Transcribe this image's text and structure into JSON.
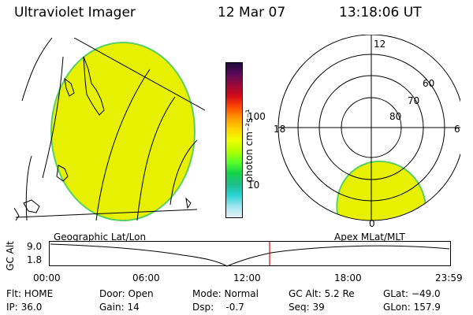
{
  "header": {
    "title": "Ultraviolet Imager",
    "date": "12 Mar 07",
    "time": "13:18:06 UT"
  },
  "geo_panel": {
    "label": "Geographic Lat/Lon"
  },
  "polar_panel": {
    "label": "Apex MLat/MLT",
    "clock_labels": {
      "top": "12",
      "left": "18",
      "right": "6",
      "bottom": "0"
    },
    "ring_labels": [
      "60",
      "70",
      "80"
    ]
  },
  "colorbar": {
    "unit": "photon cm⁻²s⁻¹",
    "ticks": [
      "100",
      "10"
    ],
    "colors": [
      "#1e0a3c",
      "#5a0a5a",
      "#9a0a3a",
      "#d20a1a",
      "#ff4a00",
      "#ff9a00",
      "#ffd200",
      "#f0ff00",
      "#b4ff00",
      "#5aff28",
      "#14d24a",
      "#1ebe8c",
      "#28d2d2",
      "#a0e6f0",
      "#e6f0f8"
    ]
  },
  "altitude_plot": {
    "ylabel": "GC Alt",
    "y_ticks": [
      "9.0",
      "1.8"
    ],
    "x_ticks": [
      "00:00",
      "06:00",
      "12:00",
      "18:00",
      "23:59"
    ],
    "marker_color": "#e00000"
  },
  "status": {
    "filter": "Flt: HOME",
    "ip": "IP: 36.0",
    "door": "Door: Open",
    "gain": "Gain: 14",
    "mode": "Mode: Normal",
    "dsp": "Dsp:    -0.7",
    "gc_alt": "GC Alt: 5.2 Re",
    "seq": "Seq: 39",
    "glat": "GLat: −49.0",
    "glon": "GLon: 157.9"
  },
  "image_color": "#e6f000"
}
